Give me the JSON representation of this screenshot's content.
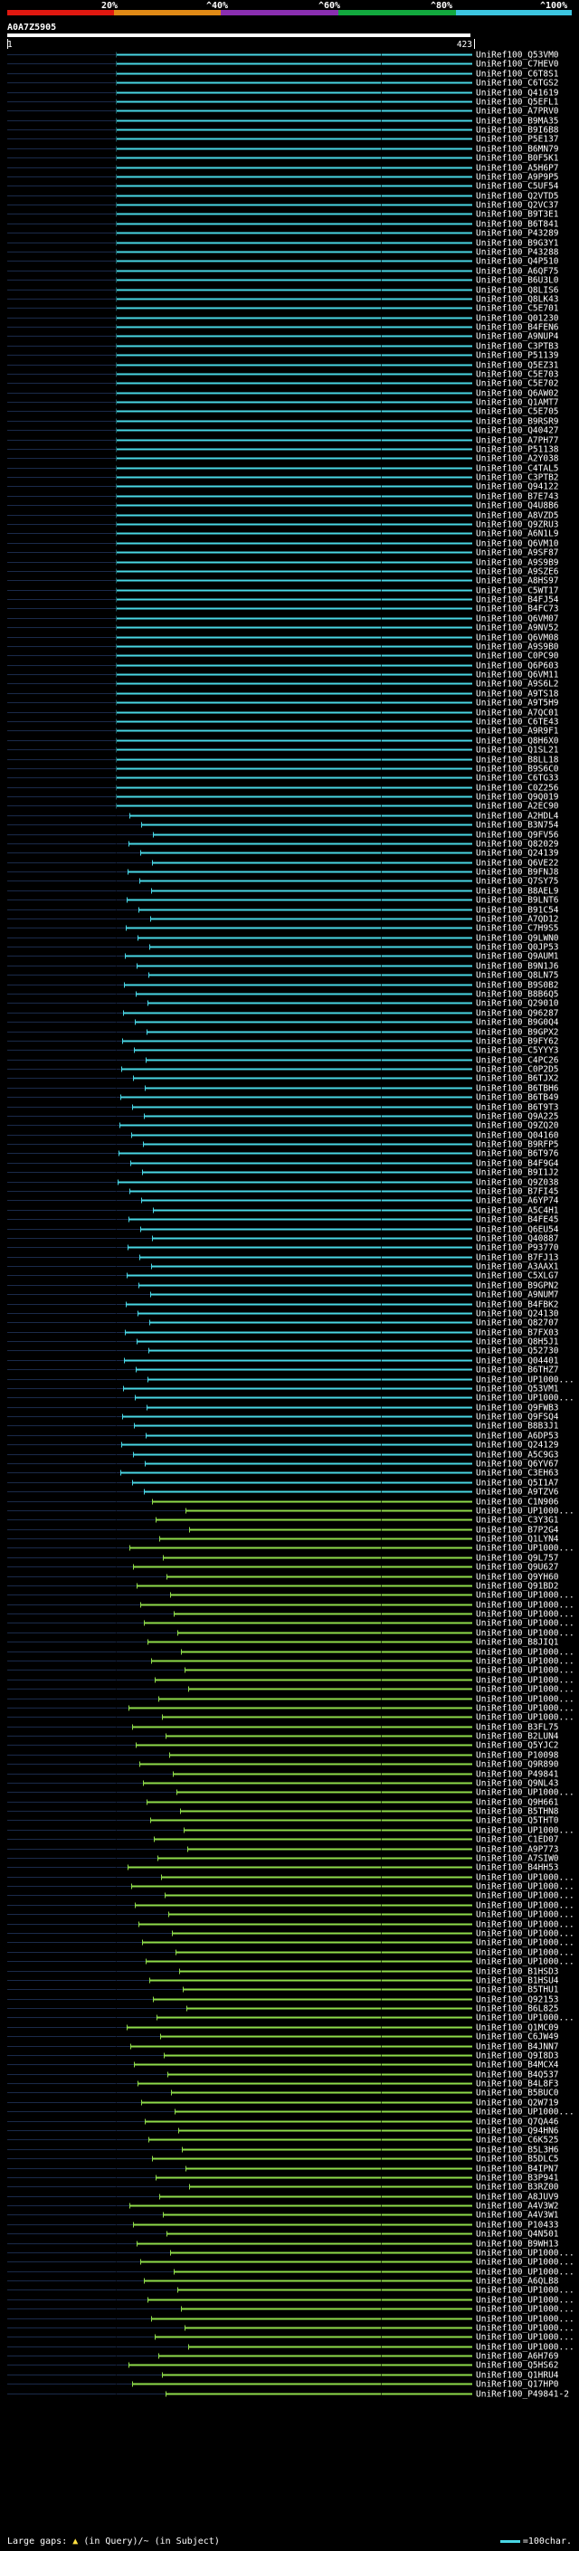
{
  "chart_data": {
    "type": "alignment-hit-map",
    "query_id": "A0A7Z5905",
    "axis_start": "1",
    "axis_end": "423",
    "identity_scale": [
      {
        "label": "20%",
        "color": "#e01810"
      },
      {
        "label": "^40%",
        "color": "#e08a16"
      },
      {
        "label": "^60%",
        "color": "#8a2fb0"
      },
      {
        "label": "^80%",
        "color": "#12a83e"
      },
      {
        "label": "^100%",
        "color": "#3cc5e0"
      }
    ],
    "series_colors": {
      "cyan": "#49d6e4",
      "green": "#8fdb4a"
    },
    "hit_labels": [
      "UniRef100_Q53VM0",
      "UniRef100_C7HEV0",
      "UniRef100_C6T8S1",
      "UniRef100_C6TGS2",
      "UniRef100_Q41619",
      "UniRef100_Q5EFL1",
      "UniRef100_A7PRV0",
      "UniRef100_B9MA35",
      "UniRef100_B9I6B8",
      "UniRef100_P5E137",
      "UniRef100_B6MN79",
      "UniRef100_B0F5K1",
      "UniRef100_A5H6P7",
      "UniRef100_A9P9P5",
      "UniRef100_C5UF54",
      "UniRef100_Q2VTD5",
      "UniRef100_Q2VC37",
      "UniRef100_B9T3E1",
      "UniRef100_B6T841",
      "UniRef100_P43289",
      "UniRef100_B9G3Y1",
      "UniRef100_P43288",
      "UniRef100_Q4P510",
      "UniRef100_A6QF75",
      "UniRef100_B6U3L0",
      "UniRef100_Q8LIS6",
      "UniRef100_Q8LK43",
      "UniRef100_C5E701",
      "UniRef100_Q01230",
      "UniRef100_B4FEN6",
      "UniRef100_A9NUP4",
      "UniRef100_C3PTB3",
      "UniRef100_P51139",
      "UniRef100_Q5EZ31",
      "UniRef100_C5E703",
      "UniRef100_C5E702",
      "UniRef100_Q6AW02",
      "UniRef100_Q1AMT7",
      "UniRef100_C5E705",
      "UniRef100_B9RSR9",
      "UniRef100_Q40427",
      "UniRef100_A7PH77",
      "UniRef100_P51138",
      "UniRef100_A2Y038",
      "UniRef100_C4TAL5",
      "UniRef100_C3PTB2",
      "UniRef100_Q94122",
      "UniRef100_B7E743",
      "UniRef100_Q4U8B6",
      "UniRef100_A8VZD5",
      "UniRef100_Q9ZRU3",
      "UniRef100_A6N1L9",
      "UniRef100_Q6VM10",
      "UniRef100_A9SF87",
      "UniRef100_A9S9B9",
      "UniRef100_A9SZE6",
      "UniRef100_A8HS97",
      "UniRef100_C5WT17",
      "UniRef100_B4FJ54",
      "UniRef100_B4FC73",
      "UniRef100_Q6VM07",
      "UniRef100_A9NV52",
      "UniRef100_Q6VM08",
      "UniRef100_A9S9B0",
      "UniRef100_C0PC90",
      "UniRef100_Q6P603",
      "UniRef100_Q6VM11",
      "UniRef100_A9S6L2",
      "UniRef100_A9TS18",
      "UniRef100_A9T5H9",
      "UniRef100_A7QC01",
      "UniRef100_C6TE43",
      "UniRef100_A9R9F1",
      "UniRef100_Q8H6X0",
      "UniRef100_Q1SL21",
      "UniRef100_B8LL18",
      "UniRef100_B9S6C0",
      "UniRef100_C6TG33",
      "UniRef100_C0Z256",
      "UniRef100_Q9Q019",
      "UniRef100_A2EC90",
      "UniRef100_A2HDL4",
      "UniRef100_B3N754",
      "UniRef100_Q9FV56",
      "UniRef100_Q82029",
      "UniRef100_Q24139",
      "UniRef100_Q6VE22",
      "UniRef100_B9FNJ8",
      "UniRef100_Q7SY75",
      "UniRef100_B8AEL9",
      "UniRef100_B9LNT6",
      "UniRef100_B91C54",
      "UniRef100_A7QD12",
      "UniRef100_C7H9S5",
      "UniRef100_Q9LWN0",
      "UniRef100_Q0JP53",
      "UniRef100_Q9AUM1",
      "UniRef100_B9N1J6",
      "UniRef100_Q8LN75",
      "UniRef100_B9S0B2",
      "UniRef100_B8B6Q5",
      "UniRef100_Q29010",
      "UniRef100_Q96287",
      "UniRef100_B9G0Q4",
      "UniRef100_B9GPX2",
      "UniRef100_B9FY62",
      "UniRef100_C5YYY3",
      "UniRef100_C4PC26",
      "UniRef100_C0P2D5",
      "UniRef100_B6TJX2",
      "UniRef100_B6TBH6",
      "UniRef100_B6TB49",
      "UniRef100_B6T9T3",
      "UniRef100_Q9A225",
      "UniRef100_Q9ZQ20",
      "UniRef100_Q04160",
      "UniRef100_B9RFP5",
      "UniRef100_B6T976",
      "UniRef100_B4F9G4",
      "UniRef100_B9I1J2",
      "UniRef100_Q9Z038",
      "UniRef100_B7FI45",
      "UniRef100_A6YP74",
      "UniRef100_A5C4H1",
      "UniRef100_B4FE45",
      "UniRef100_Q6EU54",
      "UniRef100_Q40887",
      "UniRef100_P93770",
      "UniRef100_B7FJ13",
      "UniRef100_A3AAX1",
      "UniRef100_C5XLG7",
      "UniRef100_B9GPN2",
      "UniRef100_A9NUM7",
      "UniRef100_B4FBK2",
      "UniRef100_Q24130",
      "UniRef100_Q82707",
      "UniRef100_B7FX03",
      "UniRef100_Q8H5J1",
      "UniRef100_Q52730",
      "UniRef100_Q04401",
      "UniRef100_B6THZ7",
      "UniRef100_UP1000...",
      "UniRef100_Q53VM1",
      "UniRef100_UP1000...",
      "UniRef100_Q9FWB3",
      "UniRef100_Q9FSQ4",
      "UniRef100_B8B3J1",
      "UniRef100_A6DP53",
      "UniRef100_Q24129",
      "UniRef100_A5C9G3",
      "UniRef100_Q6YV67",
      "UniRef100_C3EH63",
      "UniRef100_Q5I1A7",
      "UniRef100_A9TZV6",
      "UniRef100_C1N906",
      "UniRef100_UP1000...",
      "UniRef100_C3Y3G1",
      "UniRef100_B7P2G4",
      "UniRef100_Q1LYN4",
      "UniRef100_UP1000...",
      "UniRef100_Q9L757",
      "UniRef100_Q9U627",
      "UniRef100_Q9YH60",
      "UniRef100_Q91BD2",
      "UniRef100_UP1000...",
      "UniRef100_UP1000...",
      "UniRef100_UP1000...",
      "UniRef100_UP1000...",
      "UniRef100_UP1000...",
      "UniRef100_B8JIQ1",
      "UniRef100_UP1000...",
      "UniRef100_UP1000...",
      "UniRef100_UP1000...",
      "UniRef100_UP1000...",
      "UniRef100_UP1000...",
      "UniRef100_UP1000...",
      "UniRef100_UP1000...",
      "UniRef100_UP1000...",
      "UniRef100_B3FL75",
      "UniRef100_B2LUN4",
      "UniRef100_Q5YJC2",
      "UniRef100_P10098",
      "UniRef100_Q9R890",
      "UniRef100_P49841",
      "UniRef100_Q9NL43",
      "UniRef100_UP1000...",
      "UniRef100_Q9H661",
      "UniRef100_B5THN8",
      "UniRef100_Q5THT0",
      "UniRef100_UP1000...",
      "UniRef100_C1ED07",
      "UniRef100_A9P773",
      "UniRef100_A7SIW0",
      "UniRef100_B4HH53",
      "UniRef100_UP1000...",
      "UniRef100_UP1000...",
      "UniRef100_UP1000...",
      "UniRef100_UP1000...",
      "UniRef100_UP1000...",
      "UniRef100_UP1000...",
      "UniRef100_UP1000...",
      "UniRef100_UP1000...",
      "UniRef100_UP1000...",
      "UniRef100_UP1000...",
      "UniRef100_B1HSD3",
      "UniRef100_B1HSU4",
      "UniRef100_B5THU1",
      "UniRef100_Q92153",
      "UniRef100_B6L825",
      "UniRef100_UP1000...",
      "UniRef100_Q1MC09",
      "UniRef100_C6JW49",
      "UniRef100_B4JNN7",
      "UniRef100_Q9I8D3",
      "UniRef100_B4MCX4",
      "UniRef100_B4Q537",
      "UniRef100_B4L8F3",
      "UniRef100_B5BUC0",
      "UniRef100_Q2W719",
      "UniRef100_UP1000...",
      "UniRef100_Q7QA46",
      "UniRef100_Q94HN6",
      "UniRef100_C6K525",
      "UniRef100_B5L3H6",
      "UniRef100_B5DLC5",
      "UniRef100_B4IPN7",
      "UniRef100_B3P941",
      "UniRef100_B3RZ00",
      "UniRef100_A8JUV9",
      "UniRef100_A4V3W2",
      "UniRef100_A4V3W1",
      "UniRef100_P10433",
      "UniRef100_Q4N501",
      "UniRef100_B9WH13",
      "UniRef100_UP1000...",
      "UniRef100_UP1000...",
      "UniRef100_UP1000...",
      "UniRef100_A6QLB8",
      "UniRef100_UP1000...",
      "UniRef100_UP1000...",
      "UniRef100_UP1000...",
      "UniRef100_UP1000...",
      "UniRef100_UP1000...",
      "UniRef100_UP1000...",
      "UniRef100_UP1000...",
      "UniRef100_A6H769",
      "UniRef100_Q5HS62",
      "UniRef100_Q1HRU4",
      "UniRef100_Q17HP0",
      "UniRef100_P49841-2"
    ]
  },
  "footer": {
    "gaps_prefix": "Large gaps:",
    "gaps_arrow": "▲",
    "gaps_text": "(in Query)/~ (in Subject)",
    "legend_text": "=100char."
  }
}
